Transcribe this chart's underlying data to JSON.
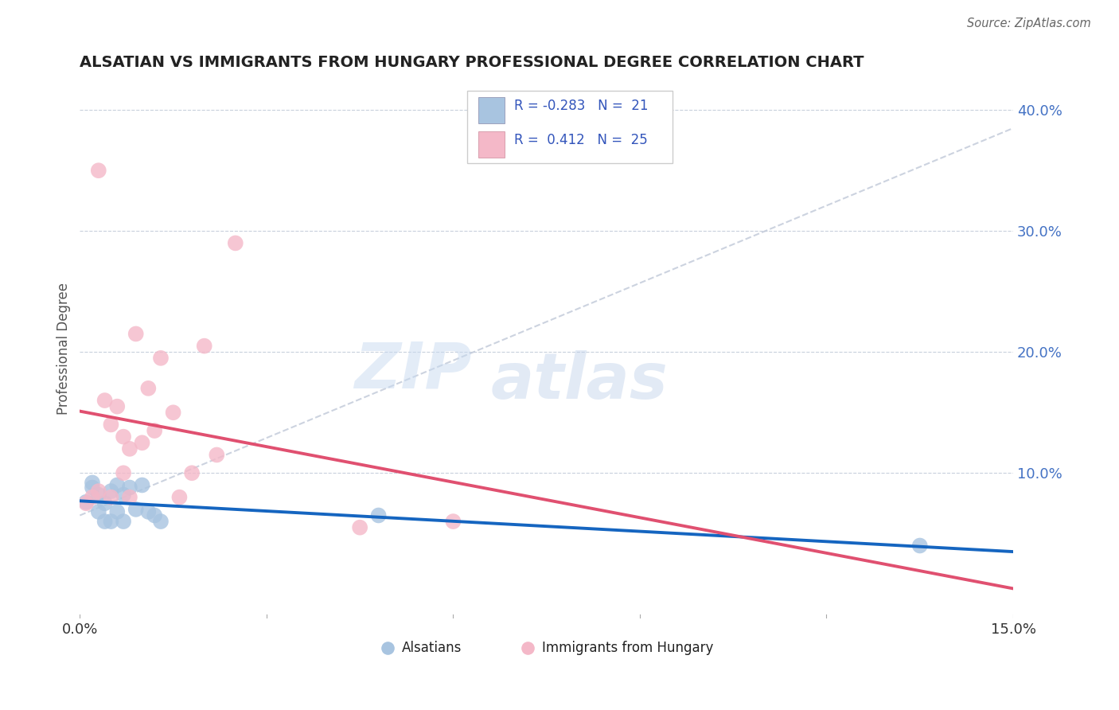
{
  "title": "ALSATIAN VS IMMIGRANTS FROM HUNGARY PROFESSIONAL DEGREE CORRELATION CHART",
  "source": "Source: ZipAtlas.com",
  "ylabel": "Professional Degree",
  "ylabel_right_ticks": [
    "40.0%",
    "30.0%",
    "20.0%",
    "10.0%"
  ],
  "ylabel_right_vals": [
    0.4,
    0.3,
    0.2,
    0.1
  ],
  "blue_color": "#a8c4e0",
  "pink_color": "#f4b8c8",
  "line_blue": "#1565c0",
  "line_pink": "#e05070",
  "line_gray": "#c0c8d8",
  "watermark_zip": "ZIP",
  "watermark_atlas": "atlas",
  "xlim": [
    0.0,
    0.15
  ],
  "ylim": [
    -0.02,
    0.425
  ],
  "alsatian_x": [
    0.001,
    0.002,
    0.002,
    0.003,
    0.003,
    0.004,
    0.004,
    0.005,
    0.005,
    0.006,
    0.006,
    0.007,
    0.007,
    0.008,
    0.009,
    0.01,
    0.011,
    0.012,
    0.013,
    0.048,
    0.135
  ],
  "alsatian_y": [
    0.076,
    0.088,
    0.092,
    0.082,
    0.068,
    0.075,
    0.06,
    0.085,
    0.06,
    0.09,
    0.068,
    0.082,
    0.06,
    0.088,
    0.07,
    0.09,
    0.068,
    0.065,
    0.06,
    0.065,
    0.04
  ],
  "hungary_x": [
    0.001,
    0.002,
    0.003,
    0.003,
    0.004,
    0.005,
    0.005,
    0.006,
    0.007,
    0.007,
    0.008,
    0.008,
    0.009,
    0.01,
    0.011,
    0.012,
    0.013,
    0.015,
    0.016,
    0.018,
    0.02,
    0.022,
    0.025,
    0.045,
    0.06
  ],
  "hungary_y": [
    0.075,
    0.08,
    0.35,
    0.085,
    0.16,
    0.14,
    0.08,
    0.155,
    0.13,
    0.1,
    0.12,
    0.08,
    0.215,
    0.125,
    0.17,
    0.135,
    0.195,
    0.15,
    0.08,
    0.1,
    0.205,
    0.115,
    0.29,
    0.055,
    0.06
  ]
}
